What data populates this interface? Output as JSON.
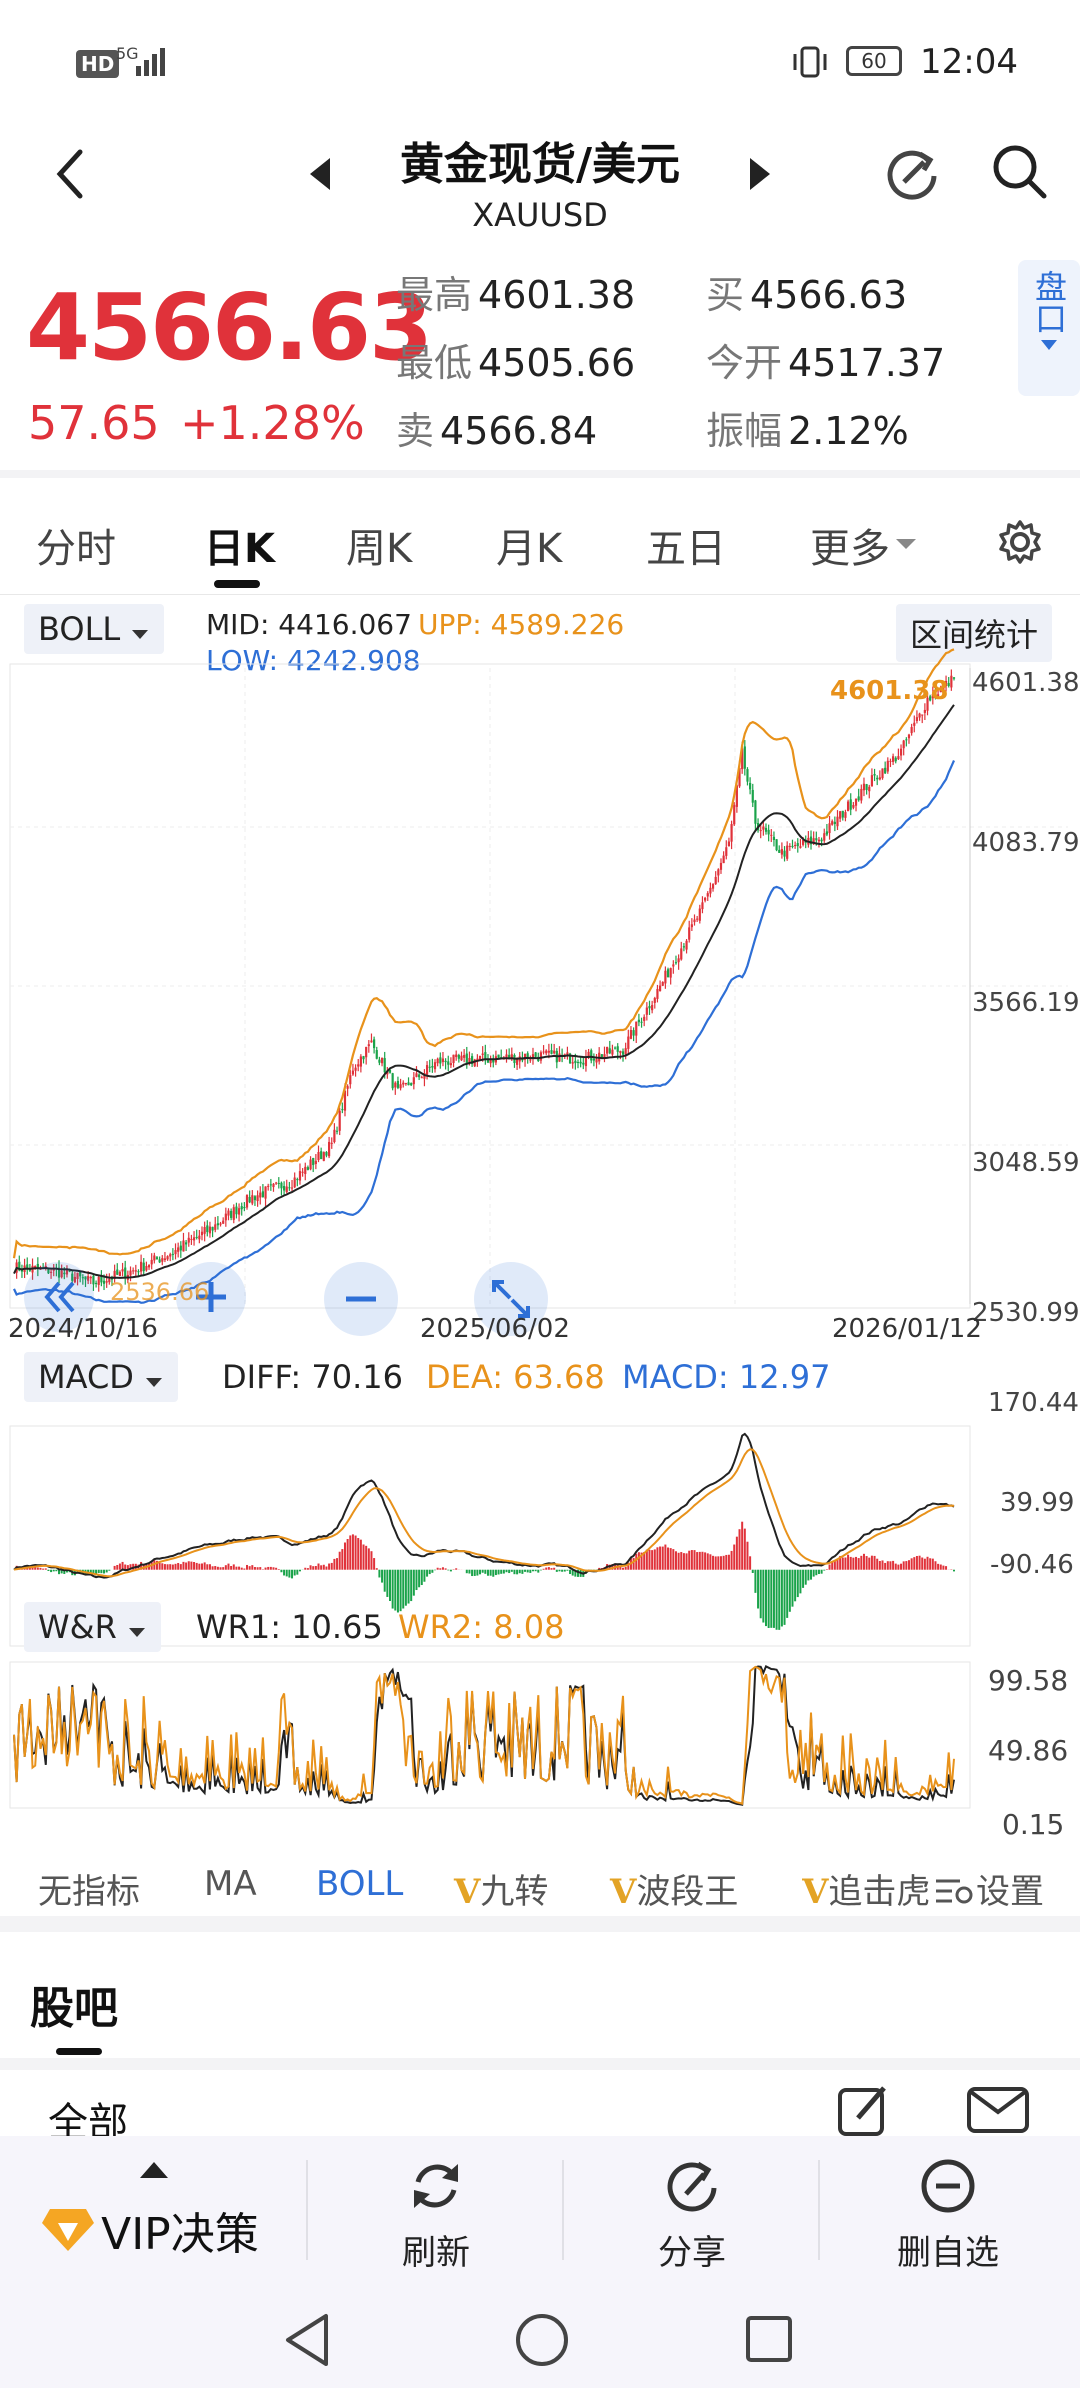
{
  "status": {
    "hd": "HD",
    "net": "5G",
    "battery": "60",
    "time": "12:04"
  },
  "header": {
    "title": "黄金现货/美元",
    "code": "XAUUSD"
  },
  "quote": {
    "price": "4566.63",
    "change": "57.65",
    "change_pct": "+1.28%",
    "high_label": "最高",
    "high": "4601.38",
    "low_label": "最低",
    "low": "4505.66",
    "sell_label": "卖",
    "sell": "4566.84",
    "buy_label": "买",
    "buy": "4566.63",
    "open_label": "今开",
    "open": "4517.37",
    "amp_label": "振幅",
    "amp": "2.12%",
    "panel_btn": "盘口"
  },
  "tabs": [
    {
      "label": "分时"
    },
    {
      "label": "日K"
    },
    {
      "label": "周K"
    },
    {
      "label": "月K"
    },
    {
      "label": "五日"
    },
    {
      "label": "更多"
    }
  ],
  "boll": {
    "name": "BOLL",
    "mid": "MID:  4416.067",
    "upp": "UPP:  4589.226",
    "low": "LOW:  4242.908",
    "range_btn": "区间统计",
    "y_ticks": [
      "4601.38",
      "4083.79",
      "3566.19",
      "3048.59",
      "2530.99"
    ],
    "x_ticks": [
      "2024/10/16",
      "2025/06/02",
      "2026/01/12"
    ],
    "hi_mark": "4601.38",
    "lo_mark": "2536.66"
  },
  "macd": {
    "name": "MACD",
    "diff": "DIFF: 70.16",
    "dea": "DEA: 63.68",
    "macd": "MACD: 12.97",
    "y_ticks": [
      "170.44",
      "39.99",
      "-90.46"
    ]
  },
  "wr": {
    "name": "W&R",
    "wr1": "WR1: 10.65",
    "wr2": "WR2: 8.08",
    "y_ticks": [
      "99.58",
      "49.86",
      "0.15"
    ]
  },
  "indicators": [
    {
      "label": "无指标"
    },
    {
      "label": "MA"
    },
    {
      "label": "BOLL"
    },
    {
      "label": "九转"
    },
    {
      "label": "波段王"
    },
    {
      "label": "追击虎"
    }
  ],
  "settings_label": "设置",
  "guba": {
    "title": "股吧",
    "filter": "全部"
  },
  "bottom": {
    "vip": "VIP决策",
    "refresh": "刷新",
    "share": "分享",
    "delete": "删自选"
  },
  "colors": {
    "up": "#e0323a",
    "down": "#1aa34a",
    "upp": "#e8921b",
    "low": "#2e6fd6",
    "mid": "#222222",
    "accent": "#2e6fd6"
  },
  "chart_data": {
    "type": "candlestick",
    "title": "黄金现货/美元 日K",
    "x_ticks": [
      "2024/10/16",
      "2025/06/02",
      "2026/01/12"
    ],
    "ylim": [
      2530.99,
      4601.38
    ],
    "close_anchors": [
      {
        "x": 0,
        "y": 2650
      },
      {
        "x": 15,
        "y": 2640
      },
      {
        "x": 30,
        "y": 2600
      },
      {
        "x": 45,
        "y": 2640
      },
      {
        "x": 60,
        "y": 2700
      },
      {
        "x": 75,
        "y": 2780
      },
      {
        "x": 90,
        "y": 2880
      },
      {
        "x": 105,
        "y": 2930
      },
      {
        "x": 120,
        "y": 3050
      },
      {
        "x": 128,
        "y": 3300
      },
      {
        "x": 135,
        "y": 3380
      },
      {
        "x": 145,
        "y": 3220
      },
      {
        "x": 160,
        "y": 3320
      },
      {
        "x": 180,
        "y": 3330
      },
      {
        "x": 200,
        "y": 3340
      },
      {
        "x": 215,
        "y": 3330
      },
      {
        "x": 230,
        "y": 3360
      },
      {
        "x": 245,
        "y": 3580
      },
      {
        "x": 260,
        "y": 3820
      },
      {
        "x": 270,
        "y": 4030
      },
      {
        "x": 275,
        "y": 4320
      },
      {
        "x": 280,
        "y": 4100
      },
      {
        "x": 290,
        "y": 4000
      },
      {
        "x": 305,
        "y": 4050
      },
      {
        "x": 320,
        "y": 4200
      },
      {
        "x": 335,
        "y": 4330
      },
      {
        "x": 345,
        "y": 4500
      },
      {
        "x": 355,
        "y": 4566.63
      }
    ]
  }
}
